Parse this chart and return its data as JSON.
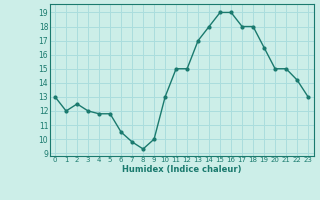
{
  "x": [
    0,
    1,
    2,
    3,
    4,
    5,
    6,
    7,
    8,
    9,
    10,
    11,
    12,
    13,
    14,
    15,
    16,
    17,
    18,
    19,
    20,
    21,
    22,
    23
  ],
  "y": [
    13,
    12,
    12.5,
    12,
    11.8,
    11.8,
    10.5,
    9.8,
    9.3,
    10,
    13,
    15,
    15,
    17,
    18,
    19,
    19,
    18,
    18,
    16.5,
    15,
    15,
    14.2,
    13
  ],
  "line_color": "#1a7a6e",
  "marker_color": "#1a7a6e",
  "bg_color": "#cceee8",
  "grid_color": "#aadddd",
  "xlabel": "Humidex (Indice chaleur)",
  "xlim": [
    -0.5,
    23.5
  ],
  "ylim": [
    8.8,
    19.6
  ],
  "xticks": [
    0,
    1,
    2,
    3,
    4,
    5,
    6,
    7,
    8,
    9,
    10,
    11,
    12,
    13,
    14,
    15,
    16,
    17,
    18,
    19,
    20,
    21,
    22,
    23
  ],
  "yticks": [
    9,
    10,
    11,
    12,
    13,
    14,
    15,
    16,
    17,
    18,
    19
  ],
  "tick_color": "#1a7a6e",
  "label_color": "#1a7a6e"
}
